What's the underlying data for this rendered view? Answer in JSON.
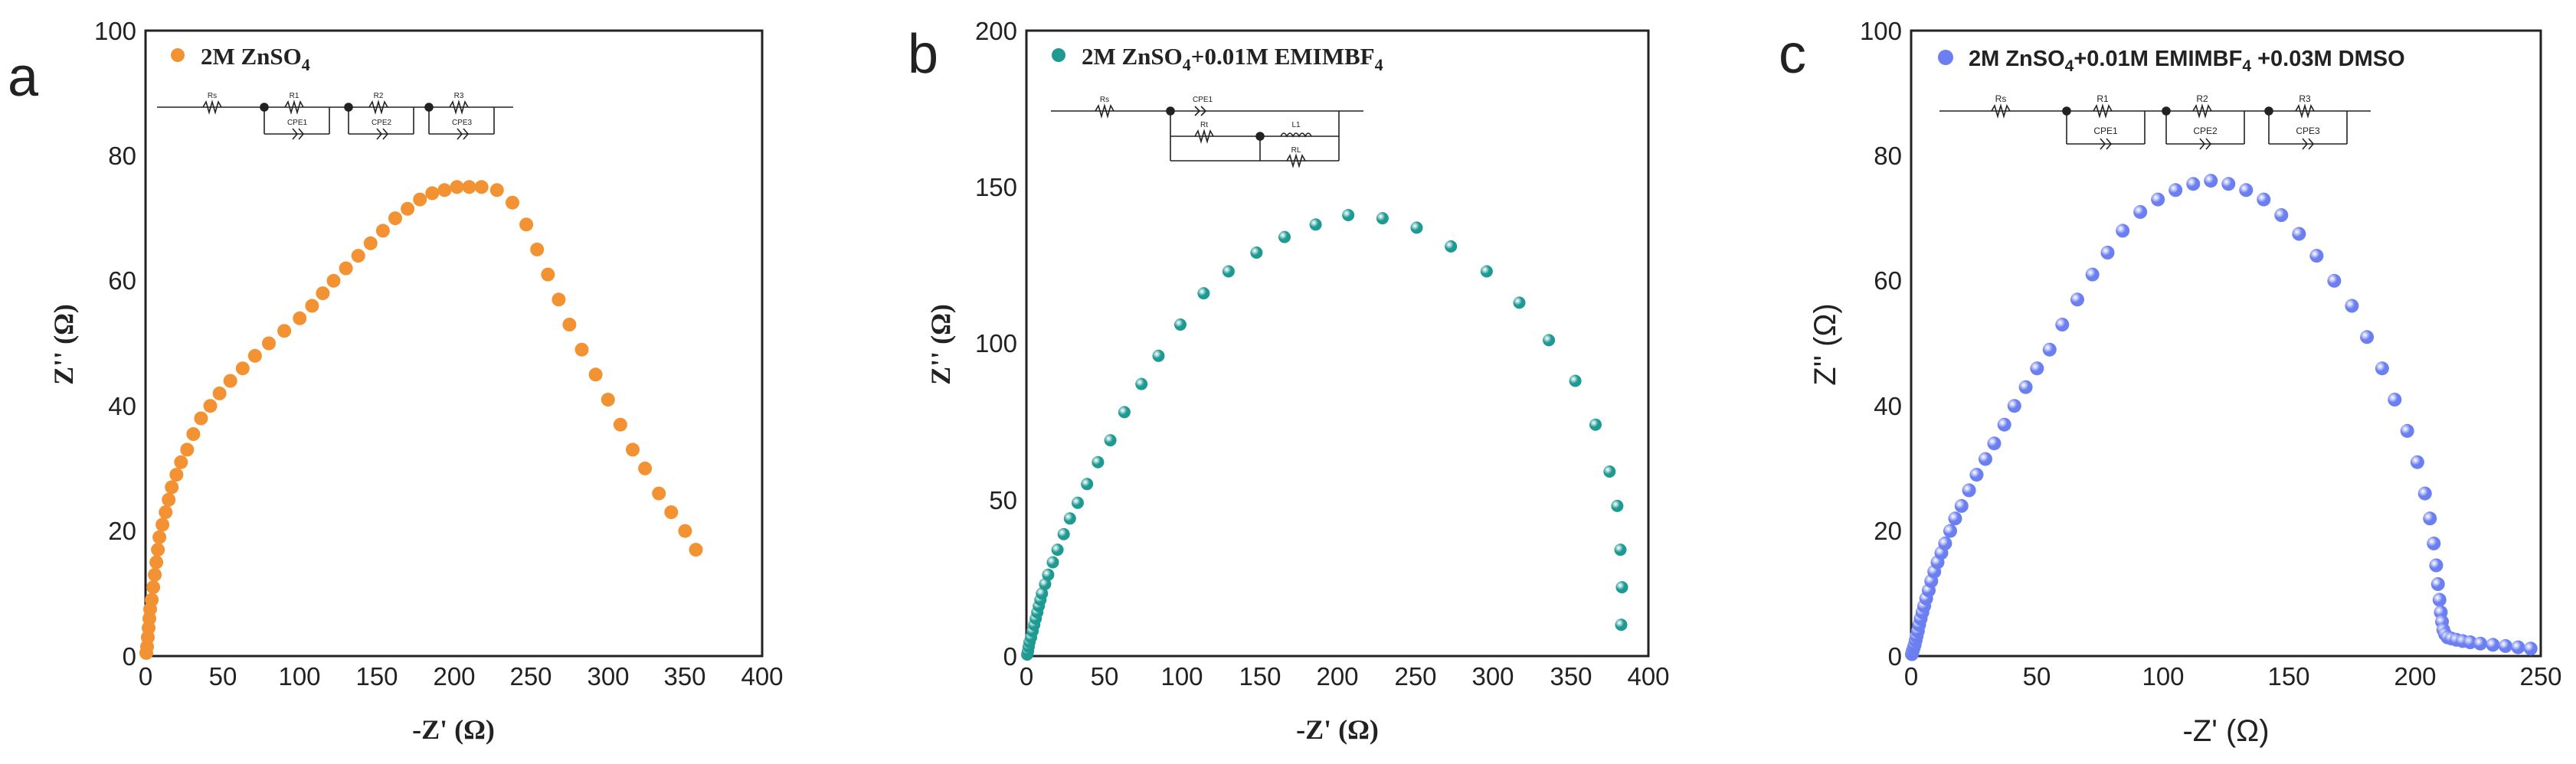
{
  "chart_data": [
    {
      "type": "scatter",
      "panel_label": "a",
      "xlabel": "-Z' (Ω)",
      "ylabel": "Z'' (Ω)",
      "xlim": [
        0,
        400
      ],
      "ylim": [
        0,
        100
      ],
      "xticks": [
        "0",
        "50",
        "100",
        "150",
        "200",
        "250",
        "300",
        "350",
        "400"
      ],
      "yticks": [
        "0",
        "20",
        "40",
        "60",
        "80",
        "100"
      ],
      "grid": false,
      "legend": "top-left",
      "series": [
        {
          "name": "2M ZnSO4",
          "color": "#f39233",
          "x": [
            0.5,
            1,
            1.5,
            2,
            2.5,
            3,
            4,
            5,
            6,
            7,
            8,
            9,
            11,
            13,
            15,
            17,
            20,
            23,
            27,
            31,
            36,
            42,
            48,
            55,
            63,
            71,
            80,
            90,
            100,
            108,
            115,
            122,
            130,
            138,
            146,
            154,
            162,
            170,
            178,
            186,
            194,
            202,
            210,
            218,
            228,
            238,
            247,
            254,
            261,
            268,
            275,
            283,
            292,
            300,
            308,
            316,
            324,
            333,
            341,
            350,
            357
          ],
          "y": [
            0.5,
            1.5,
            3,
            4.5,
            6,
            7.5,
            9,
            11,
            13,
            15,
            17,
            19,
            21,
            23,
            25,
            27,
            29,
            31,
            33,
            35.5,
            38,
            40,
            42,
            44,
            46,
            48,
            50,
            52,
            54,
            56,
            58,
            60,
            62,
            64,
            66,
            68,
            70,
            71.5,
            73,
            74,
            74.5,
            75,
            75,
            75,
            74.5,
            72.5,
            69,
            65,
            61,
            57,
            53,
            49,
            45,
            41,
            37,
            33,
            30,
            26,
            23,
            20,
            17
          ]
        }
      ],
      "inset_circuit": {
        "labels": [
          "Rs",
          "R1",
          "CPE1",
          "R2",
          "CPE2",
          "R3",
          "CPE3"
        ]
      }
    },
    {
      "type": "scatter",
      "panel_label": "b",
      "xlabel": "-Z' (Ω)",
      "ylabel": "Z'' (Ω)",
      "xlim": [
        0,
        400
      ],
      "ylim": [
        0,
        200
      ],
      "xticks": [
        "0",
        "50",
        "100",
        "150",
        "200",
        "250",
        "300",
        "350",
        "400"
      ],
      "yticks": [
        "0",
        "50",
        "100",
        "150",
        "200"
      ],
      "grid": false,
      "legend": "top-left",
      "series": [
        {
          "name": "2M ZnSO4+0.01M EMIMBF4",
          "color": "#1e9a93",
          "x": [
            0.5,
            1,
            1.5,
            2,
            3,
            4,
            5,
            6,
            7,
            8,
            9,
            10,
            12,
            14,
            17,
            20,
            24,
            28,
            33,
            39,
            46,
            54,
            63,
            74,
            85,
            99,
            114,
            130,
            148,
            166,
            186,
            207,
            229,
            251,
            273,
            296,
            317,
            336,
            353,
            366,
            375,
            380,
            382,
            383,
            382.5
          ],
          "y": [
            0.5,
            1.5,
            3,
            4.5,
            6,
            8,
            10,
            12,
            14,
            16,
            18,
            20,
            23,
            26,
            30,
            34,
            39,
            44,
            49,
            55,
            62,
            69,
            78,
            87,
            96,
            106,
            116,
            123,
            129,
            134,
            138,
            141,
            140,
            137,
            131,
            123,
            113,
            101,
            88,
            74,
            59,
            48,
            34,
            22,
            10
          ]
        }
      ],
      "inset_circuit": {
        "labels": [
          "Rs",
          "CPE1",
          "Rt",
          "L1",
          "RL"
        ]
      }
    },
    {
      "type": "scatter",
      "panel_label": "c",
      "xlabel": "-Z' (Ω)",
      "ylabel": "Z'' (Ω)",
      "xlim": [
        0,
        250
      ],
      "ylim": [
        0,
        100
      ],
      "xticks": [
        "0",
        "50",
        "100",
        "150",
        "200",
        "250"
      ],
      "yticks": [
        "0",
        "20",
        "40",
        "60",
        "80",
        "100"
      ],
      "grid": false,
      "legend": "top-left",
      "series": [
        {
          "name": "2M ZnSO4+0.01M EMIMBF4 +0.03M DMSO",
          "color": "#6c7ff0",
          "x": [
            0.3,
            0.6,
            1,
            1.4,
            1.8,
            2.2,
            2.7,
            3.2,
            3.8,
            4.5,
            5.2,
            6,
            7,
            8,
            9.2,
            10.5,
            12,
            13.5,
            15.5,
            17.5,
            20,
            23,
            26,
            29.5,
            33,
            37,
            41,
            45.5,
            50,
            55,
            60,
            66,
            72,
            78,
            84,
            91,
            98,
            105,
            112,
            119,
            126,
            133,
            140,
            147,
            154,
            161,
            168,
            175,
            181,
            187,
            192,
            197,
            201,
            204,
            206,
            207.5,
            208.5,
            209.2,
            209.8,
            210.3,
            210.8,
            211.3,
            212,
            213,
            214.5,
            216.5,
            219,
            222,
            226,
            231,
            236,
            241,
            246
          ],
          "y": [
            0.3,
            0.8,
            1.3,
            1.8,
            2.5,
            3.2,
            4,
            5,
            6,
            7,
            8,
            9.2,
            10.5,
            12,
            13.5,
            15,
            16.5,
            18,
            20,
            22,
            24,
            26.5,
            29,
            31.5,
            34,
            37,
            40,
            43,
            46,
            49,
            53,
            57,
            61,
            64.5,
            68,
            71,
            73,
            74.5,
            75.5,
            76,
            75.5,
            74.5,
            73,
            70.5,
            67.5,
            64,
            60,
            56,
            51,
            46,
            41,
            36,
            31,
            26,
            22,
            18,
            14.5,
            11.5,
            9,
            7,
            5.5,
            4.2,
            3.5,
            3,
            2.8,
            2.6,
            2.4,
            2.2,
            2,
            1.8,
            1.6,
            1.4,
            1.2
          ]
        }
      ],
      "inset_circuit": {
        "labels": [
          "Rs",
          "R1",
          "CPE1",
          "R2",
          "CPE2",
          "R3",
          "CPE3"
        ]
      }
    }
  ]
}
